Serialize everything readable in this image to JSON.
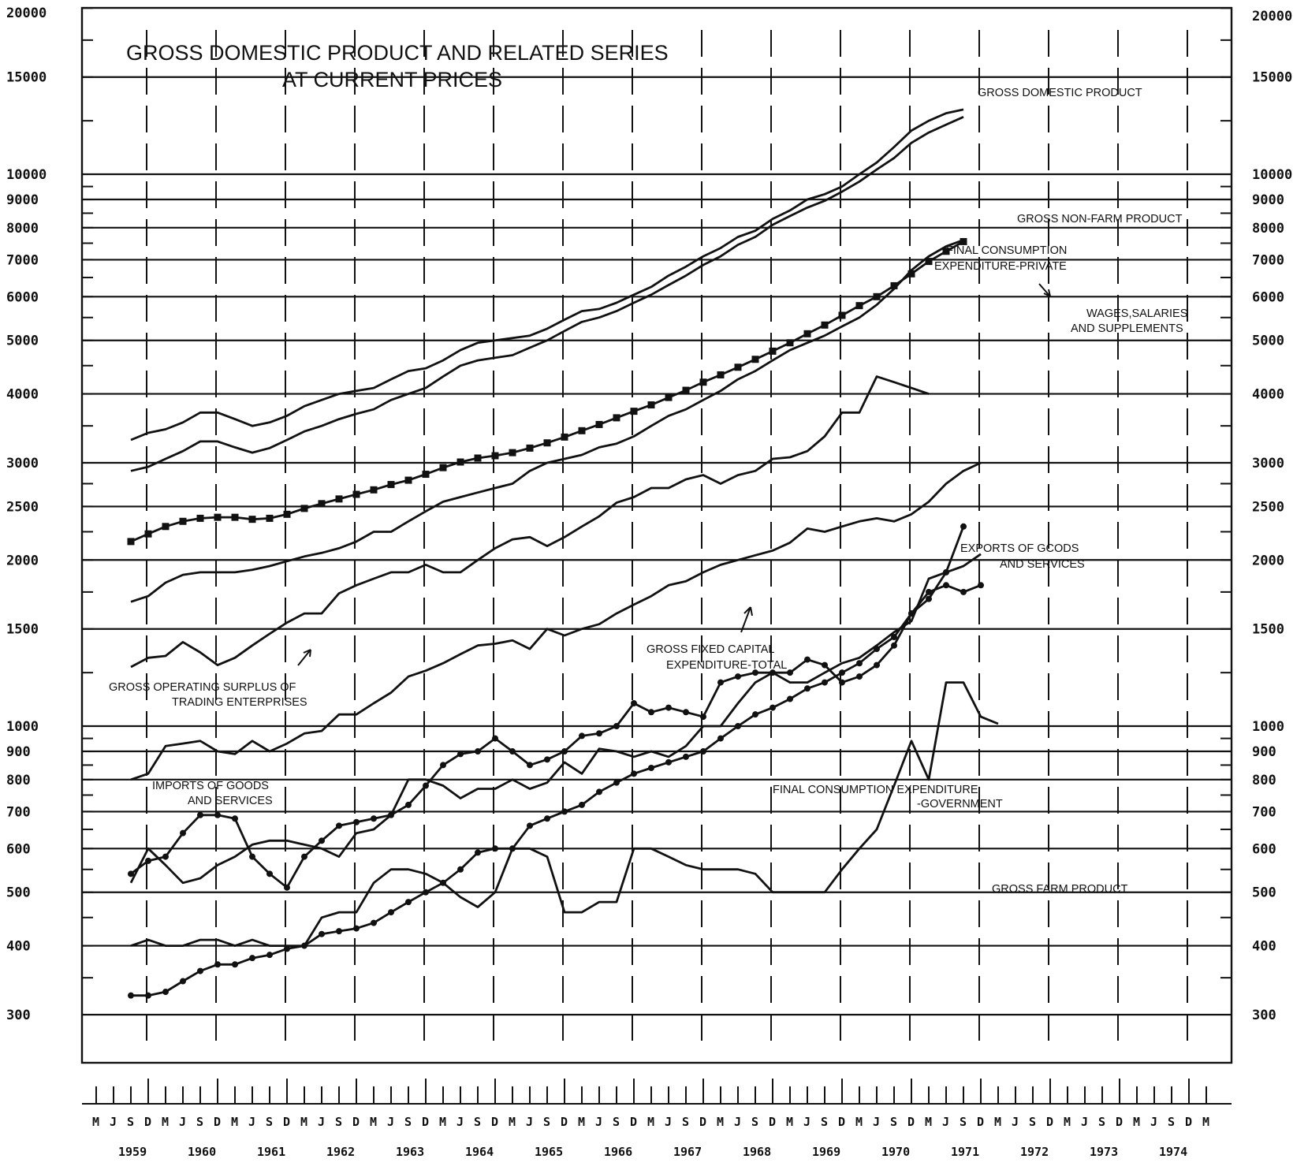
{
  "chart_data": {
    "type": "line",
    "title": "GROSS DOMESTIC PRODUCT AND RELATED SERIES",
    "subtitle": "AT CURRENT PRICES",
    "y_scale": "log",
    "ylim": [
      250,
      20000
    ],
    "y_ticks": [
      20000,
      15000,
      10000,
      9000,
      8000,
      7000,
      6000,
      5000,
      4000,
      3000,
      2500,
      2000,
      1500,
      1000,
      900,
      800,
      700,
      600,
      500,
      400,
      300
    ],
    "y_tick_labels": [
      "20000",
      "15000",
      "10000",
      "9000",
      "8000",
      "7000",
      "6000",
      "5000",
      "4000",
      "3000",
      "2500",
      "2000",
      "1500",
      "1000",
      "900",
      "800",
      "700",
      "600",
      "500",
      "400",
      "300"
    ],
    "x_month_labels": [
      "M",
      "J",
      "S",
      "D",
      "M",
      "J",
      "S",
      "D",
      "M",
      "J",
      "S",
      "D",
      "M",
      "J",
      "S",
      "D",
      "M",
      "J",
      "S",
      "D",
      "M",
      "J",
      "S",
      "D",
      "M",
      "J",
      "S",
      "D",
      "M",
      "J",
      "S",
      "D",
      "M",
      "J",
      "S",
      "D",
      "M",
      "J",
      "S",
      "D",
      "M",
      "J",
      "S",
      "D",
      "M",
      "J",
      "S",
      "D",
      "M",
      "J",
      "S",
      "D",
      "M",
      "J",
      "S",
      "D",
      "M",
      "J",
      "S",
      "D",
      "M",
      "J",
      "S",
      "D",
      "M"
    ],
    "x_year_labels": [
      "1959",
      "1960",
      "1961",
      "1962",
      "1963",
      "1964",
      "1965",
      "1966",
      "1967",
      "1968",
      "1969",
      "1970",
      "1971",
      "1972",
      "1973",
      "1974"
    ],
    "x_start_quarter": "1959-09",
    "series": [
      {
        "name": "GROSS DOMESTIC PRODUCT",
        "marker": false,
        "start": "1959-09",
        "values": [
          3300,
          3400,
          3450,
          3550,
          3700,
          3700,
          3600,
          3500,
          3550,
          3650,
          3800,
          3900,
          4000,
          4050,
          4100,
          4250,
          4400,
          4450,
          4600,
          4800,
          4950,
          5000,
          5050,
          5100,
          5250,
          5450,
          5650,
          5700,
          5850,
          6050,
          6250,
          6550,
          6800,
          7100,
          7350,
          7700,
          7900,
          8300,
          8600,
          9000,
          9200,
          9500,
          10000,
          10500,
          11200,
          12000,
          12500,
          12900,
          13100
        ]
      },
      {
        "name": "GROSS NON-FARM PRODUCT",
        "marker": false,
        "start": "1959-09",
        "values": [
          2900,
          2950,
          3050,
          3150,
          3280,
          3280,
          3200,
          3130,
          3190,
          3300,
          3420,
          3500,
          3600,
          3680,
          3750,
          3900,
          4000,
          4100,
          4300,
          4500,
          4600,
          4650,
          4700,
          4850,
          5000,
          5200,
          5400,
          5500,
          5650,
          5850,
          6050,
          6300,
          6550,
          6850,
          7100,
          7450,
          7700,
          8100,
          8400,
          8700,
          8950,
          9300,
          9700,
          10200,
          10700,
          11400,
          11900,
          12300,
          12700
        ]
      },
      {
        "name": "FINAL CONSUMPTION EXPENDITURE-PRIVATE",
        "marker": true,
        "start": "1959-09",
        "values": [
          2160,
          2230,
          2300,
          2350,
          2380,
          2390,
          2390,
          2370,
          2380,
          2420,
          2480,
          2530,
          2580,
          2630,
          2680,
          2740,
          2790,
          2860,
          2940,
          3010,
          3060,
          3090,
          3130,
          3190,
          3260,
          3340,
          3430,
          3520,
          3620,
          3720,
          3820,
          3940,
          4060,
          4200,
          4330,
          4470,
          4620,
          4780,
          4950,
          5140,
          5330,
          5550,
          5780,
          6000,
          6280,
          6600,
          6950,
          7250,
          7550
        ]
      },
      {
        "name": "WAGES,SALARIES AND SUPPLEMENTS",
        "marker": false,
        "start": "1959-09",
        "values": [
          1680,
          1720,
          1820,
          1880,
          1900,
          1900,
          1900,
          1920,
          1950,
          1990,
          2030,
          2060,
          2100,
          2160,
          2250,
          2250,
          2350,
          2450,
          2550,
          2600,
          2650,
          2700,
          2750,
          2900,
          3000,
          3050,
          3100,
          3200,
          3250,
          3350,
          3500,
          3650,
          3750,
          3900,
          4050,
          4250,
          4400,
          4600,
          4800,
          4950,
          5100,
          5300,
          5500,
          5800,
          6200,
          6700,
          7100,
          7400,
          7600
        ]
      },
      {
        "name": "GROSS OPERATING SURPLUS OF TRADING ENTERPRISES",
        "marker": false,
        "start": "1959-09",
        "values": [
          1280,
          1330,
          1340,
          1420,
          1360,
          1290,
          1330,
          1400,
          1470,
          1540,
          1600,
          1600,
          1740,
          1800,
          1850,
          1900,
          1900,
          1960,
          1900,
          1900,
          2000,
          2100,
          2180,
          2200,
          2120,
          2200,
          2300,
          2400,
          2540,
          2600,
          2700,
          2700,
          2800,
          2850,
          2750,
          2850,
          2900,
          3050,
          3070,
          3150,
          3350,
          3700,
          3700,
          4300,
          4200,
          4100,
          4000
        ]
      },
      {
        "name": "GROSS FIXED CAPITAL EXPENDITURE-TOTAL",
        "marker": false,
        "start": "1959-09",
        "values": [
          800,
          820,
          920,
          930,
          940,
          900,
          890,
          940,
          900,
          930,
          970,
          980,
          1050,
          1050,
          1100,
          1150,
          1230,
          1260,
          1300,
          1350,
          1400,
          1410,
          1430,
          1380,
          1500,
          1460,
          1500,
          1530,
          1600,
          1660,
          1720,
          1800,
          1830,
          1900,
          1960,
          2000,
          2040,
          2080,
          2150,
          2280,
          2250,
          2300,
          2350,
          2380,
          2350,
          2420,
          2550,
          2750,
          2900,
          3000
        ]
      },
      {
        "name": "EXPORTS OF GOODS AND SERVICES",
        "marker": false,
        "start": "1959-09",
        "values": [
          520,
          600,
          560,
          520,
          530,
          560,
          580,
          610,
          620,
          620,
          610,
          600,
          580,
          640,
          650,
          690,
          800,
          800,
          780,
          740,
          770,
          770,
          800,
          770,
          790,
          860,
          820,
          910,
          900,
          880,
          900,
          880,
          920,
          1000,
          1000,
          1100,
          1200,
          1250,
          1200,
          1200,
          1250,
          1300,
          1330,
          1400,
          1480,
          1550,
          1850,
          1900,
          1950,
          2050
        ]
      },
      {
        "name": "IMPORTS OF GOODS AND SERVICES",
        "marker": true,
        "start": "1959-09",
        "values": [
          540,
          570,
          580,
          640,
          690,
          690,
          680,
          580,
          540,
          510,
          580,
          620,
          660,
          670,
          680,
          690,
          720,
          780,
          850,
          890,
          900,
          950,
          900,
          850,
          870,
          900,
          960,
          970,
          1000,
          1100,
          1060,
          1080,
          1060,
          1040,
          1200,
          1230,
          1250,
          1250,
          1250,
          1320,
          1290,
          1200,
          1230,
          1290,
          1400,
          1600,
          1750,
          1800,
          1750,
          1800
        ]
      },
      {
        "name": "FINAL CONSUMPTION EXPENDITURE -GOVERNMENT",
        "marker": true,
        "start": "1959-09",
        "values": [
          325,
          325,
          330,
          345,
          360,
          370,
          370,
          380,
          385,
          395,
          400,
          420,
          425,
          430,
          440,
          460,
          480,
          500,
          520,
          550,
          590,
          600,
          600,
          660,
          680,
          700,
          720,
          760,
          790,
          820,
          840,
          860,
          880,
          900,
          950,
          1000,
          1050,
          1080,
          1120,
          1170,
          1200,
          1250,
          1300,
          1380,
          1450,
          1600,
          1700,
          1900,
          2300
        ]
      },
      {
        "name": "GROSS FARM PRODUCT",
        "marker": false,
        "start": "1959-09",
        "values": [
          400,
          410,
          400,
          400,
          410,
          410,
          400,
          410,
          400,
          400,
          400,
          450,
          460,
          460,
          520,
          550,
          550,
          540,
          520,
          490,
          470,
          500,
          600,
          600,
          580,
          460,
          460,
          480,
          480,
          600,
          600,
          580,
          560,
          550,
          550,
          550,
          540,
          500,
          500,
          500,
          500,
          550,
          600,
          650,
          780,
          940,
          800,
          1200,
          1200,
          1040,
          1010
        ]
      }
    ],
    "annotations": [
      "GROSS DOMESTIC PRODUCT",
      "GROSS NON-FARM PRODUCT",
      "FINAL CONSUMPTION",
      "EXPENDITURE-PRIVATE",
      "WAGES,SALARIES",
      "AND SUPPLEMENTS",
      "EXPORTS OF GCODS",
      "AND SERVICES",
      "GROSS FIXED CAPITAL",
      "EXPENDITURE-TOTAL",
      "GROSS OPERATING SURPLUS OF",
      "TRADING ENTERPRISES",
      "IMPORTS OF GOODS",
      "AND SERVICES",
      "FINAL CONSUMPTION EXPENDITURE",
      "-GOVERNMENT",
      "GROSS FARM PRODUCT"
    ]
  }
}
